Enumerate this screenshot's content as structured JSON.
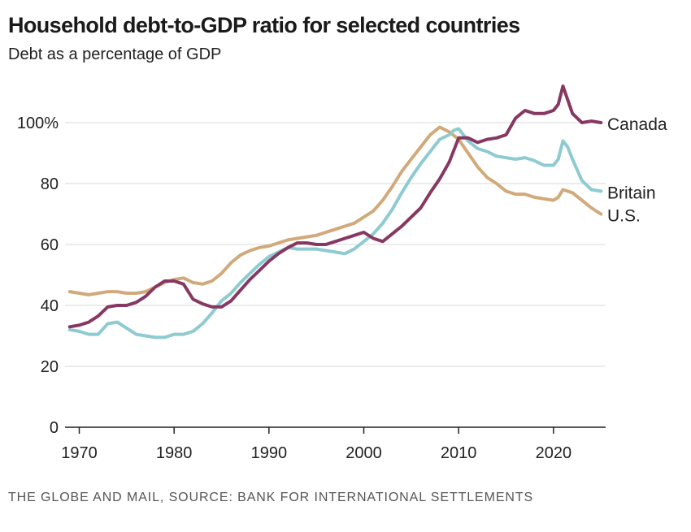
{
  "chart_data": {
    "type": "line",
    "title": "Household debt-to-GDP ratio for selected countries",
    "subtitle": "Debt as a percentage of GDP",
    "source": "THE GLOBE AND MAIL, SOURCE: BANK FOR INTERNATIONAL SETTLEMENTS",
    "xlabel": "",
    "ylabel": "",
    "xlim": [
      1968.5,
      2025.5
    ],
    "ylim": [
      0,
      100
    ],
    "grid": true,
    "x_ticks": [
      {
        "value": 1970,
        "label": "1970"
      },
      {
        "value": 1980,
        "label": "1980"
      },
      {
        "value": 1990,
        "label": "1990"
      },
      {
        "value": 2000,
        "label": "2000"
      },
      {
        "value": 2010,
        "label": "2010"
      },
      {
        "value": 2020,
        "label": "2020"
      }
    ],
    "y_ticks": [
      {
        "value": 0,
        "label": "0"
      },
      {
        "value": 20,
        "label": "20"
      },
      {
        "value": 40,
        "label": "40"
      },
      {
        "value": 60,
        "label": "60"
      },
      {
        "value": 80,
        "label": "80"
      },
      {
        "value": 100,
        "label": "100%"
      }
    ],
    "series": [
      {
        "name": "U.S.",
        "label": "U.S.",
        "color": "#d1a97a",
        "x": [
          1969,
          1970,
          1971,
          1972,
          1973,
          1974,
          1975,
          1976,
          1977,
          1978,
          1979,
          1980,
          1981,
          1982,
          1983,
          1984,
          1985,
          1986,
          1987,
          1988,
          1989,
          1990,
          1991,
          1992,
          1993,
          1994,
          1995,
          1996,
          1997,
          1998,
          1999,
          2000,
          2001,
          2002,
          2003,
          2004,
          2005,
          2006,
          2007,
          2008,
          2009,
          2010,
          2011,
          2012,
          2013,
          2014,
          2015,
          2016,
          2017,
          2018,
          2019,
          2020,
          2020.5,
          2021,
          2022,
          2023,
          2024,
          2025
        ],
        "values": [
          44.5,
          44,
          43.5,
          44,
          44.5,
          44.5,
          44,
          44,
          44.5,
          46,
          47.5,
          48.5,
          49,
          47.5,
          47,
          48,
          50.5,
          54,
          56.5,
          58,
          59,
          59.5,
          60.5,
          61.5,
          62,
          62.5,
          63,
          64,
          65,
          66,
          67,
          69,
          71,
          74.5,
          79,
          84,
          88,
          92,
          96,
          98.5,
          97,
          94.5,
          90,
          85.5,
          82,
          80,
          77.5,
          76.5,
          76.5,
          75.5,
          75,
          74.5,
          75.5,
          78,
          77,
          74.5,
          72,
          70
        ]
      },
      {
        "name": "Britain",
        "label": "Britain",
        "color": "#8ecbd1",
        "x": [
          1969,
          1970,
          1971,
          1972,
          1973,
          1974,
          1975,
          1976,
          1977,
          1978,
          1979,
          1980,
          1981,
          1982,
          1983,
          1984,
          1985,
          1986,
          1987,
          1988,
          1989,
          1990,
          1991,
          1992,
          1993,
          1994,
          1995,
          1996,
          1997,
          1998,
          1999,
          2000,
          2001,
          2002,
          2003,
          2004,
          2005,
          2006,
          2007,
          2008,
          2009,
          2009.5,
          2010,
          2011,
          2012,
          2013,
          2014,
          2015,
          2016,
          2017,
          2018,
          2019,
          2020,
          2020.5,
          2021,
          2021.5,
          2022,
          2023,
          2024,
          2025
        ],
        "values": [
          32,
          31.5,
          30.5,
          30.5,
          34,
          34.5,
          32.5,
          30.5,
          30,
          29.5,
          29.5,
          30.5,
          30.5,
          31.5,
          34,
          37.5,
          41.5,
          44,
          47.5,
          50.5,
          53.5,
          56,
          57.5,
          59,
          58.5,
          58.5,
          58.5,
          58,
          57.5,
          57,
          58.5,
          61,
          63.5,
          67,
          71.5,
          77,
          82,
          86.5,
          90.5,
          94.5,
          96,
          97.5,
          98,
          94,
          91.5,
          90.5,
          89,
          88.5,
          88,
          88.5,
          87.5,
          86,
          86,
          88,
          94,
          92,
          88,
          81,
          78,
          77.5
        ]
      },
      {
        "name": "Canada",
        "label": "Canada",
        "color": "#873862",
        "x": [
          1969,
          1970,
          1971,
          1972,
          1973,
          1974,
          1975,
          1976,
          1977,
          1978,
          1979,
          1980,
          1981,
          1982,
          1983,
          1984,
          1985,
          1986,
          1987,
          1988,
          1989,
          1990,
          1991,
          1992,
          1993,
          1994,
          1995,
          1996,
          1997,
          1998,
          1999,
          2000,
          2001,
          2002,
          2003,
          2004,
          2005,
          2006,
          2007,
          2008,
          2009,
          2010,
          2011,
          2012,
          2013,
          2014,
          2015,
          2016,
          2017,
          2018,
          2019,
          2020,
          2020.5,
          2021,
          2022,
          2023,
          2024,
          2025
        ],
        "values": [
          33,
          33.5,
          34.5,
          36.5,
          39.5,
          40,
          40,
          41,
          43,
          46,
          48,
          48,
          47,
          42,
          40.5,
          39.5,
          39.5,
          41.5,
          45,
          48.5,
          51.5,
          54.5,
          57,
          59,
          60.5,
          60.5,
          60,
          60,
          61,
          62,
          63,
          64,
          62,
          61,
          63.5,
          66,
          69,
          72,
          77,
          81.5,
          87,
          95,
          95,
          93.5,
          94.5,
          95,
          96,
          101.5,
          104,
          103,
          103,
          104,
          106,
          112,
          103,
          100,
          100.5,
          100
        ]
      }
    ]
  }
}
